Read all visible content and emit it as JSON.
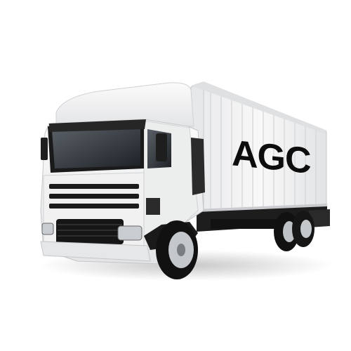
{
  "image": {
    "subject": "truck",
    "container_logo": "AGC",
    "colors": {
      "background": "#ffffff",
      "body": "#f2f2f2",
      "shade": "#d6d8da",
      "trim": "#1b1b1b",
      "logo": "#0d0d0d"
    }
  }
}
